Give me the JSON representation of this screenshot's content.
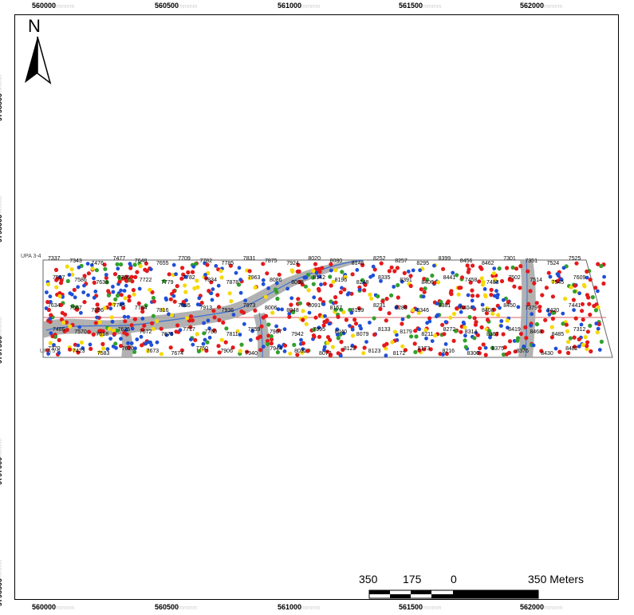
{
  "map": {
    "x_ticks": [
      {
        "label": "560000",
        "suffix": "mmmm"
      },
      {
        "label": "560500",
        "suffix": "mmmm"
      },
      {
        "label": "561000",
        "suffix": "mmmm"
      },
      {
        "label": "561500",
        "suffix": "mmmm"
      },
      {
        "label": "562000",
        "suffix": "mmmm"
      }
    ],
    "y_ticks": [
      {
        "label": "9798500",
        "suffix": "mmmm"
      },
      {
        "label": "9798000",
        "suffix": "mmmm"
      },
      {
        "label": "9797500",
        "suffix": "mmmm"
      },
      {
        "label": "9797000",
        "suffix": "mmmm"
      },
      {
        "label": "9796500",
        "suffix": "mmmm"
      }
    ],
    "north_arrow": {
      "letter": "N",
      "icon": "north-arrow-icon"
    },
    "zones": {
      "upper": "UPA 3-4",
      "lower": "UPA 5-6"
    },
    "scale_bar": {
      "labels": [
        "350",
        "175",
        "0",
        "350 Meters"
      ]
    },
    "colors": {
      "red_points": "#e31a1c",
      "blue_points": "#1f4fd6",
      "green_points": "#33a02c",
      "yellow_points": "#f5d90a",
      "riparian_buffer": "#a9a9a9",
      "stream": "#3b6fd1",
      "boundary": "#555555"
    },
    "point_labels": [
      "7337",
      "7343",
      "7476",
      "7477",
      "7648",
      "7655",
      "7709",
      "7782",
      "7785",
      "7831",
      "7875",
      "7924",
      "8020",
      "8080",
      "8146",
      "8252",
      "8257",
      "8295",
      "8399",
      "8456",
      "8462",
      "7301",
      "7351",
      "7524",
      "7525",
      "7567",
      "7586",
      "7638",
      "7706",
      "7722",
      "7779",
      "7782",
      "7834",
      "7878",
      "7963",
      "8086",
      "8098",
      "8142",
      "8196",
      "8248",
      "8335",
      "8391",
      "8406",
      "8441",
      "7458",
      "7483",
      "7502",
      "7514",
      "7545",
      "7609",
      "7634",
      "7667",
      "7696",
      "7745",
      "7794",
      "7816",
      "7865",
      "7913",
      "7936",
      "7973",
      "8006",
      "8048",
      "8091",
      "8157",
      "8199",
      "8231",
      "8288",
      "8346",
      "8381",
      "8404",
      "8408",
      "8450",
      "7379",
      "7420",
      "7441",
      "7486",
      "7570",
      "7618",
      "7625",
      "7672",
      "7676",
      "7717",
      "7760",
      "7811",
      "7859",
      "7907",
      "7942",
      "7995",
      "8040",
      "8079",
      "8133",
      "8179",
      "8211",
      "8272",
      "8314",
      "8367",
      "8419",
      "8468",
      "8485",
      "7312",
      "7370",
      "7423",
      "7583",
      "7620",
      "7673",
      "7674",
      "7750",
      "7906",
      "7940",
      "7944",
      "8032",
      "8077",
      "8122",
      "8123",
      "8172",
      "8173",
      "8216",
      "8300",
      "8375",
      "8376",
      "8430",
      "8482"
    ]
  }
}
